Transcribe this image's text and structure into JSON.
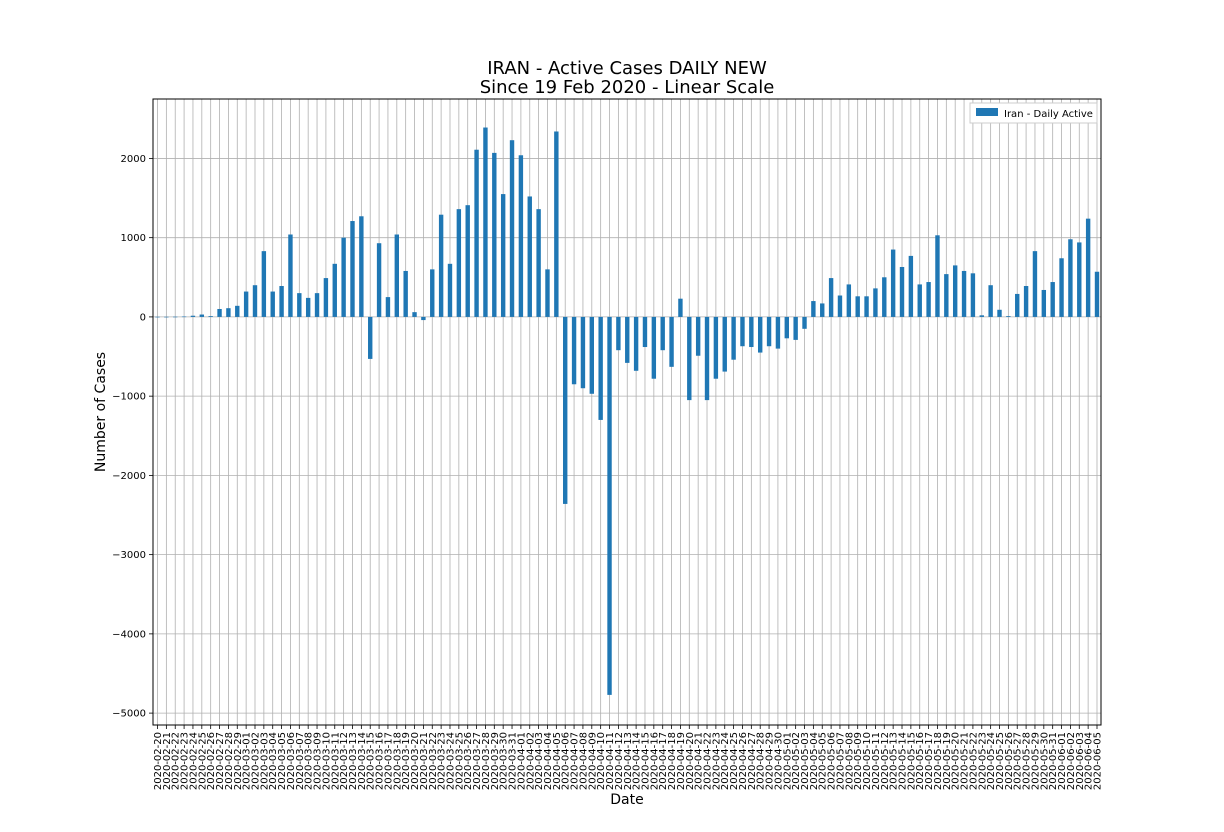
{
  "chart_data": {
    "type": "bar",
    "title": "IRAN - Active Cases DAILY NEW",
    "subtitle": "Since 19 Feb 2020 - Linear Scale",
    "xlabel": "Date",
    "ylabel": "Number of Cases",
    "ylim": [
      -5150,
      2750
    ],
    "yticks": [
      -5000,
      -4000,
      -3000,
      -2000,
      -1000,
      0,
      1000,
      2000
    ],
    "ytick_labels": [
      "−5000",
      "−4000",
      "−3000",
      "−2000",
      "−1000",
      "0",
      "1000",
      "2000"
    ],
    "grid": true,
    "legend_position": "top-right",
    "bar_color": "#1f77b4",
    "series": [
      {
        "name": "Iran - Daily Active"
      }
    ],
    "categories": [
      "2020-02-20",
      "2020-02-21",
      "2020-02-22",
      "2020-02-23",
      "2020-02-24",
      "2020-02-25",
      "2020-02-26",
      "2020-02-27",
      "2020-02-28",
      "2020-02-29",
      "2020-03-01",
      "2020-03-02",
      "2020-03-03",
      "2020-03-04",
      "2020-03-05",
      "2020-03-06",
      "2020-03-07",
      "2020-03-08",
      "2020-03-09",
      "2020-03-10",
      "2020-03-11",
      "2020-03-12",
      "2020-03-13",
      "2020-03-14",
      "2020-03-15",
      "2020-03-16",
      "2020-03-17",
      "2020-03-18",
      "2020-03-19",
      "2020-03-20",
      "2020-03-21",
      "2020-03-22",
      "2020-03-23",
      "2020-03-24",
      "2020-03-25",
      "2020-03-26",
      "2020-03-27",
      "2020-03-28",
      "2020-03-29",
      "2020-03-30",
      "2020-03-31",
      "2020-04-01",
      "2020-04-02",
      "2020-04-03",
      "2020-04-04",
      "2020-04-05",
      "2020-04-06",
      "2020-04-07",
      "2020-04-08",
      "2020-04-09",
      "2020-04-10",
      "2020-04-11",
      "2020-04-12",
      "2020-04-13",
      "2020-04-14",
      "2020-04-15",
      "2020-04-16",
      "2020-04-17",
      "2020-04-18",
      "2020-04-19",
      "2020-04-20",
      "2020-04-21",
      "2020-04-22",
      "2020-04-23",
      "2020-04-24",
      "2020-04-25",
      "2020-04-26",
      "2020-04-27",
      "2020-04-28",
      "2020-04-29",
      "2020-04-30",
      "2020-05-01",
      "2020-05-02",
      "2020-05-03",
      "2020-05-04",
      "2020-05-05",
      "2020-05-06",
      "2020-05-07",
      "2020-05-08",
      "2020-05-09",
      "2020-05-10",
      "2020-05-11",
      "2020-05-12",
      "2020-05-13",
      "2020-05-14",
      "2020-05-15",
      "2020-05-16",
      "2020-05-17",
      "2020-05-18",
      "2020-05-19",
      "2020-05-20",
      "2020-05-21",
      "2020-05-22",
      "2020-05-23",
      "2020-05-24",
      "2020-05-25",
      "2020-05-26",
      "2020-05-27",
      "2020-05-28",
      "2020-05-29",
      "2020-05-30",
      "2020-05-31",
      "2020-06-01",
      "2020-06-02",
      "2020-06-03",
      "2020-06-04",
      "2020-06-05"
    ],
    "values": [
      2,
      2,
      3,
      5,
      15,
      30,
      10,
      100,
      110,
      140,
      320,
      400,
      830,
      320,
      390,
      1040,
      300,
      240,
      300,
      490,
      670,
      1000,
      1210,
      1270,
      -530,
      930,
      250,
      1040,
      580,
      60,
      -40,
      600,
      1290,
      670,
      1360,
      1410,
      2110,
      2390,
      2070,
      1550,
      2230,
      2040,
      1520,
      1360,
      600,
      2340,
      -2360,
      -850,
      -900,
      -970,
      -1300,
      -4770,
      -420,
      -580,
      -680,
      -380,
      -780,
      -420,
      -630,
      230,
      -1050,
      -490,
      -1050,
      -780,
      -690,
      -540,
      -370,
      -380,
      -450,
      -370,
      -400,
      -270,
      -290,
      -150,
      200,
      170,
      490,
      270,
      410,
      260,
      260,
      360,
      500,
      850,
      630,
      770,
      410,
      440,
      1030,
      540,
      650,
      580,
      550,
      20,
      400,
      90,
      10,
      290,
      390,
      830,
      340,
      440,
      740,
      980,
      940,
      1240,
      570
    ]
  }
}
